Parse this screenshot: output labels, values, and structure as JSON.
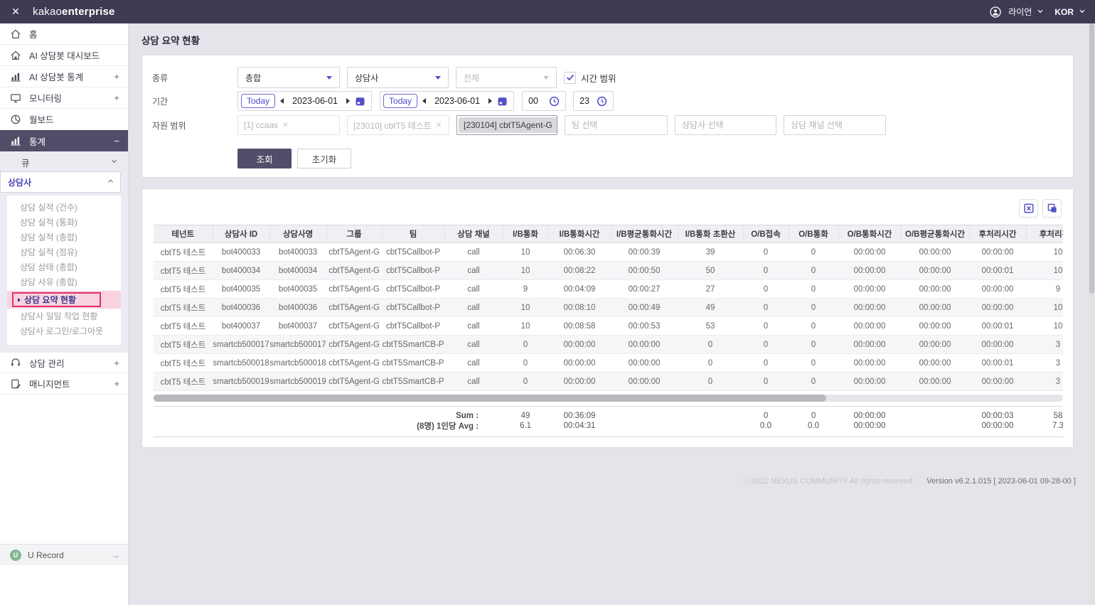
{
  "colors": {
    "topbar_bg": "#3d3b54",
    "accent_purple": "#5350c6",
    "sidebar_active_bg": "#504d69",
    "highlight_pink": "#f9d3e0",
    "highlight_border": "#e0306e",
    "urecord_green": "#83b791"
  },
  "topbar": {
    "logo_kakao": "kakao",
    "logo_enterprise": "enterprise",
    "user_name": "라이언",
    "locale": "KOR"
  },
  "sidebar": {
    "items": [
      {
        "label": "홈"
      },
      {
        "label": "AI 상담봇 대시보드"
      },
      {
        "label": "AI 상담봇 통계",
        "expand": "+"
      },
      {
        "label": "모니터링",
        "expand": "+"
      },
      {
        "label": "월보드"
      },
      {
        "label": "통계",
        "expand": "−",
        "active": true
      }
    ],
    "submenu": {
      "groups": [
        {
          "label": "큐"
        },
        {
          "label": "상담사"
        }
      ],
      "items": [
        "상담 실적 (건수)",
        "상담 실적 (통화)",
        "상담 실적 (총합)",
        "상담 실적 (점유)",
        "상담 상태 (총합)",
        "상담 사유 (총합)",
        "상담 요약 현황",
        "상담사 일일 작업 현황",
        "상담사 로그인/로그아웃"
      ],
      "active_item": "상담 요약 현황"
    },
    "items_bottom": [
      {
        "label": "상담 관리",
        "expand": "+"
      },
      {
        "label": "매니지먼트",
        "expand": "+"
      }
    ],
    "footer_item": {
      "label": "U Record",
      "badge": "U"
    }
  },
  "page": {
    "title": "상담 요약 현황"
  },
  "filters": {
    "type_label": "종류",
    "type_select_1": "총합",
    "type_select_2": "상담사",
    "type_select_3": "전체",
    "time_range_label": "시간 범위",
    "period_label": "기간",
    "date_from": {
      "today": "Today",
      "date": "2023-06-01"
    },
    "date_to": {
      "today": "Today",
      "date": "2023-06-01"
    },
    "hour_from": "00",
    "hour_to": "23",
    "resource_label": "자원 범위",
    "chips": [
      "[1] ccaas",
      "[23010] cbtT5 테스트",
      "[230104] cbtT5Agent-G"
    ],
    "placeholders": {
      "team": "팀 선택",
      "agent": "상담사 선택",
      "channel": "상담 채널 선택"
    },
    "search_button": "조회",
    "reset_button": "초기화"
  },
  "table": {
    "headers": [
      "테넌트",
      "상담사 ID",
      "상담사명",
      "그룹",
      "팀",
      "상담 채널",
      "I/B통화",
      "I/B통화시간",
      "I/B평균통화시간",
      "I/B통화 초환산",
      "O/B접속",
      "O/B통화",
      "O/B통화시간",
      "O/B평균통화시간",
      "후처리시간",
      "후처리횟수"
    ],
    "rows": [
      [
        "cbtT5 테스트",
        "bot400033",
        "bot400033",
        "cbtT5Agent-G",
        "cbtT5Callbot-P",
        "call",
        "10",
        "00:06:30",
        "00:00:39",
        "39",
        "0",
        "0",
        "00:00:00",
        "00:00:00",
        "00:00:00",
        "10"
      ],
      [
        "cbtT5 테스트",
        "bot400034",
        "bot400034",
        "cbtT5Agent-G",
        "cbtT5Callbot-P",
        "call",
        "10",
        "00:08:22",
        "00:00:50",
        "50",
        "0",
        "0",
        "00:00:00",
        "00:00:00",
        "00:00:01",
        "10"
      ],
      [
        "cbtT5 테스트",
        "bot400035",
        "bot400035",
        "cbtT5Agent-G",
        "cbtT5Callbot-P",
        "call",
        "9",
        "00:04:09",
        "00:00:27",
        "27",
        "0",
        "0",
        "00:00:00",
        "00:00:00",
        "00:00:00",
        "9"
      ],
      [
        "cbtT5 테스트",
        "bot400036",
        "bot400036",
        "cbtT5Agent-G",
        "cbtT5Callbot-P",
        "call",
        "10",
        "00:08:10",
        "00:00:49",
        "49",
        "0",
        "0",
        "00:00:00",
        "00:00:00",
        "00:00:00",
        "10"
      ],
      [
        "cbtT5 테스트",
        "bot400037",
        "bot400037",
        "cbtT5Agent-G",
        "cbtT5Callbot-P",
        "call",
        "10",
        "00:08:58",
        "00:00:53",
        "53",
        "0",
        "0",
        "00:00:00",
        "00:00:00",
        "00:00:01",
        "10"
      ],
      [
        "cbtT5 테스트",
        "smartcb500017",
        "smartcb500017",
        "cbtT5Agent-G",
        "cbtT5SmartCB-P",
        "call",
        "0",
        "00:00:00",
        "00:00:00",
        "0",
        "0",
        "0",
        "00:00:00",
        "00:00:00",
        "00:00:00",
        "3"
      ],
      [
        "cbtT5 테스트",
        "smartcb500018",
        "smartcb500018",
        "cbtT5Agent-G",
        "cbtT5SmartCB-P",
        "call",
        "0",
        "00:00:00",
        "00:00:00",
        "0",
        "0",
        "0",
        "00:00:00",
        "00:00:00",
        "00:00:01",
        "3"
      ],
      [
        "cbtT5 테스트",
        "smartcb500019",
        "smartcb500019",
        "cbtT5Agent-G",
        "cbtT5SmartCB-P",
        "call",
        "0",
        "00:00:00",
        "00:00:00",
        "0",
        "0",
        "0",
        "00:00:00",
        "00:00:00",
        "00:00:00",
        "3"
      ]
    ],
    "summary": {
      "sum_label": "Sum :",
      "avg_label": "(8명) 1인당 Avg :",
      "sum_values": [
        "49",
        "00:36:09",
        "",
        "",
        "0",
        "0",
        "00:00:00",
        "",
        "00:00:03",
        "58"
      ],
      "avg_values": [
        "6.1",
        "00:04:31",
        "",
        "",
        "0.0",
        "0.0",
        "00:00:00",
        "",
        "00:00:00",
        "7.3"
      ]
    }
  },
  "footer": {
    "copyright": "ⓒ2022 NEXUS COMMUNITY All rights reserved.",
    "version": "Version v6.2.1.015 [ 2023-06-01 09-28-00 ]"
  }
}
